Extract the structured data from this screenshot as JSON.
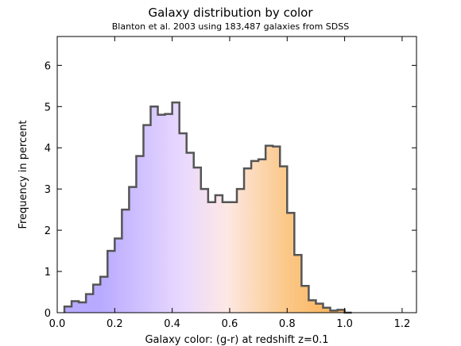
{
  "chart_data": {
    "type": "bar",
    "title": "Galaxy distribution by color",
    "subtitle": "Blanton et al. 2003 using 183,487 galaxies from SDSS",
    "xlabel": "Galaxy color: (g-r) at redshift z=0.1",
    "ylabel": "Frequency in percent",
    "xlim": [
      0.0,
      1.25
    ],
    "ylim": [
      0,
      6.7
    ],
    "xticks": [
      "0.0",
      "0.2",
      "0.4",
      "0.6",
      "0.8",
      "1.0",
      "1.2"
    ],
    "yticks": [
      "0",
      "1",
      "2",
      "3",
      "4",
      "5",
      "6"
    ],
    "grid": false,
    "histogram": {
      "bin_edges": [
        0.025,
        0.05,
        0.075,
        0.1,
        0.125,
        0.15,
        0.175,
        0.2,
        0.225,
        0.25,
        0.275,
        0.3,
        0.325,
        0.35,
        0.375,
        0.4,
        0.425,
        0.45,
        0.475,
        0.5,
        0.525,
        0.55,
        0.575,
        0.6,
        0.625,
        0.65,
        0.675,
        0.7,
        0.725,
        0.75,
        0.775,
        0.8,
        0.825,
        0.85,
        0.875,
        0.9,
        0.925,
        0.95,
        0.975,
        1.0,
        1.025,
        1.05,
        1.075,
        1.1,
        1.125,
        1.15,
        1.175,
        1.2
      ],
      "values": [
        0.15,
        0.28,
        0.25,
        0.45,
        0.68,
        0.87,
        1.5,
        1.8,
        2.5,
        3.05,
        3.8,
        4.55,
        5.0,
        4.8,
        4.82,
        5.1,
        4.35,
        3.88,
        3.52,
        3.0,
        2.68,
        2.85,
        2.68,
        2.68,
        3.0,
        3.5,
        3.68,
        3.72,
        4.05,
        4.03,
        3.55,
        2.42,
        1.4,
        0.65,
        0.3,
        0.22,
        0.12,
        0.05,
        0.07,
        0.0,
        0.0,
        0.0,
        0.0,
        0.0,
        0.0,
        0.0,
        0.0
      ]
    },
    "gradient_colors": [
      "#b8aaff",
      "#e8d8ff",
      "#fde8e4",
      "#fbc98a",
      "#f9b560"
    ],
    "outline_color": "#555555"
  }
}
